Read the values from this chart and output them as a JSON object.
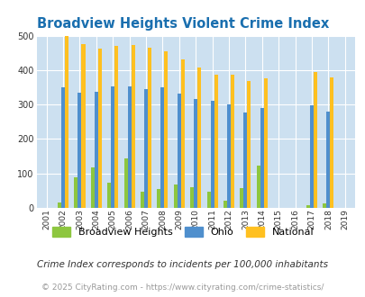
{
  "years": [
    2001,
    2002,
    2003,
    2004,
    2005,
    2006,
    2007,
    2008,
    2009,
    2010,
    2011,
    2012,
    2013,
    2014,
    2015,
    2016,
    2017,
    2018,
    2019
  ],
  "broadview_heights": [
    null,
    15,
    90,
    118,
    72,
    143,
    48,
    55,
    68,
    60,
    48,
    22,
    58,
    122,
    null,
    null,
    8,
    12,
    null
  ],
  "ohio": [
    null,
    350,
    335,
    338,
    352,
    352,
    346,
    350,
    333,
    315,
    310,
    300,
    278,
    290,
    null,
    null,
    298,
    280,
    null
  ],
  "national": [
    null,
    499,
    476,
    463,
    469,
    474,
    466,
    455,
    432,
    407,
    387,
    387,
    368,
    377,
    null,
    null,
    394,
    380,
    null
  ],
  "title": "Broadview Heights Violent Crime Index",
  "ylim": [
    0,
    500
  ],
  "yticks": [
    0,
    100,
    200,
    300,
    400,
    500
  ],
  "bar_width": 0.22,
  "c_bv": "#8dc63f",
  "c_ohio": "#4f8fcd",
  "c_nat": "#ffc020",
  "bg_color": "#cce0f0",
  "legend_labels": [
    "Broadview Heights",
    "Ohio",
    "National"
  ],
  "footnote1": "Crime Index corresponds to incidents per 100,000 inhabitants",
  "footnote2": "© 2025 CityRating.com - https://www.cityrating.com/crime-statistics/",
  "title_color": "#1a6faf",
  "footnote1_color": "#333333",
  "footnote2_color": "#999999"
}
